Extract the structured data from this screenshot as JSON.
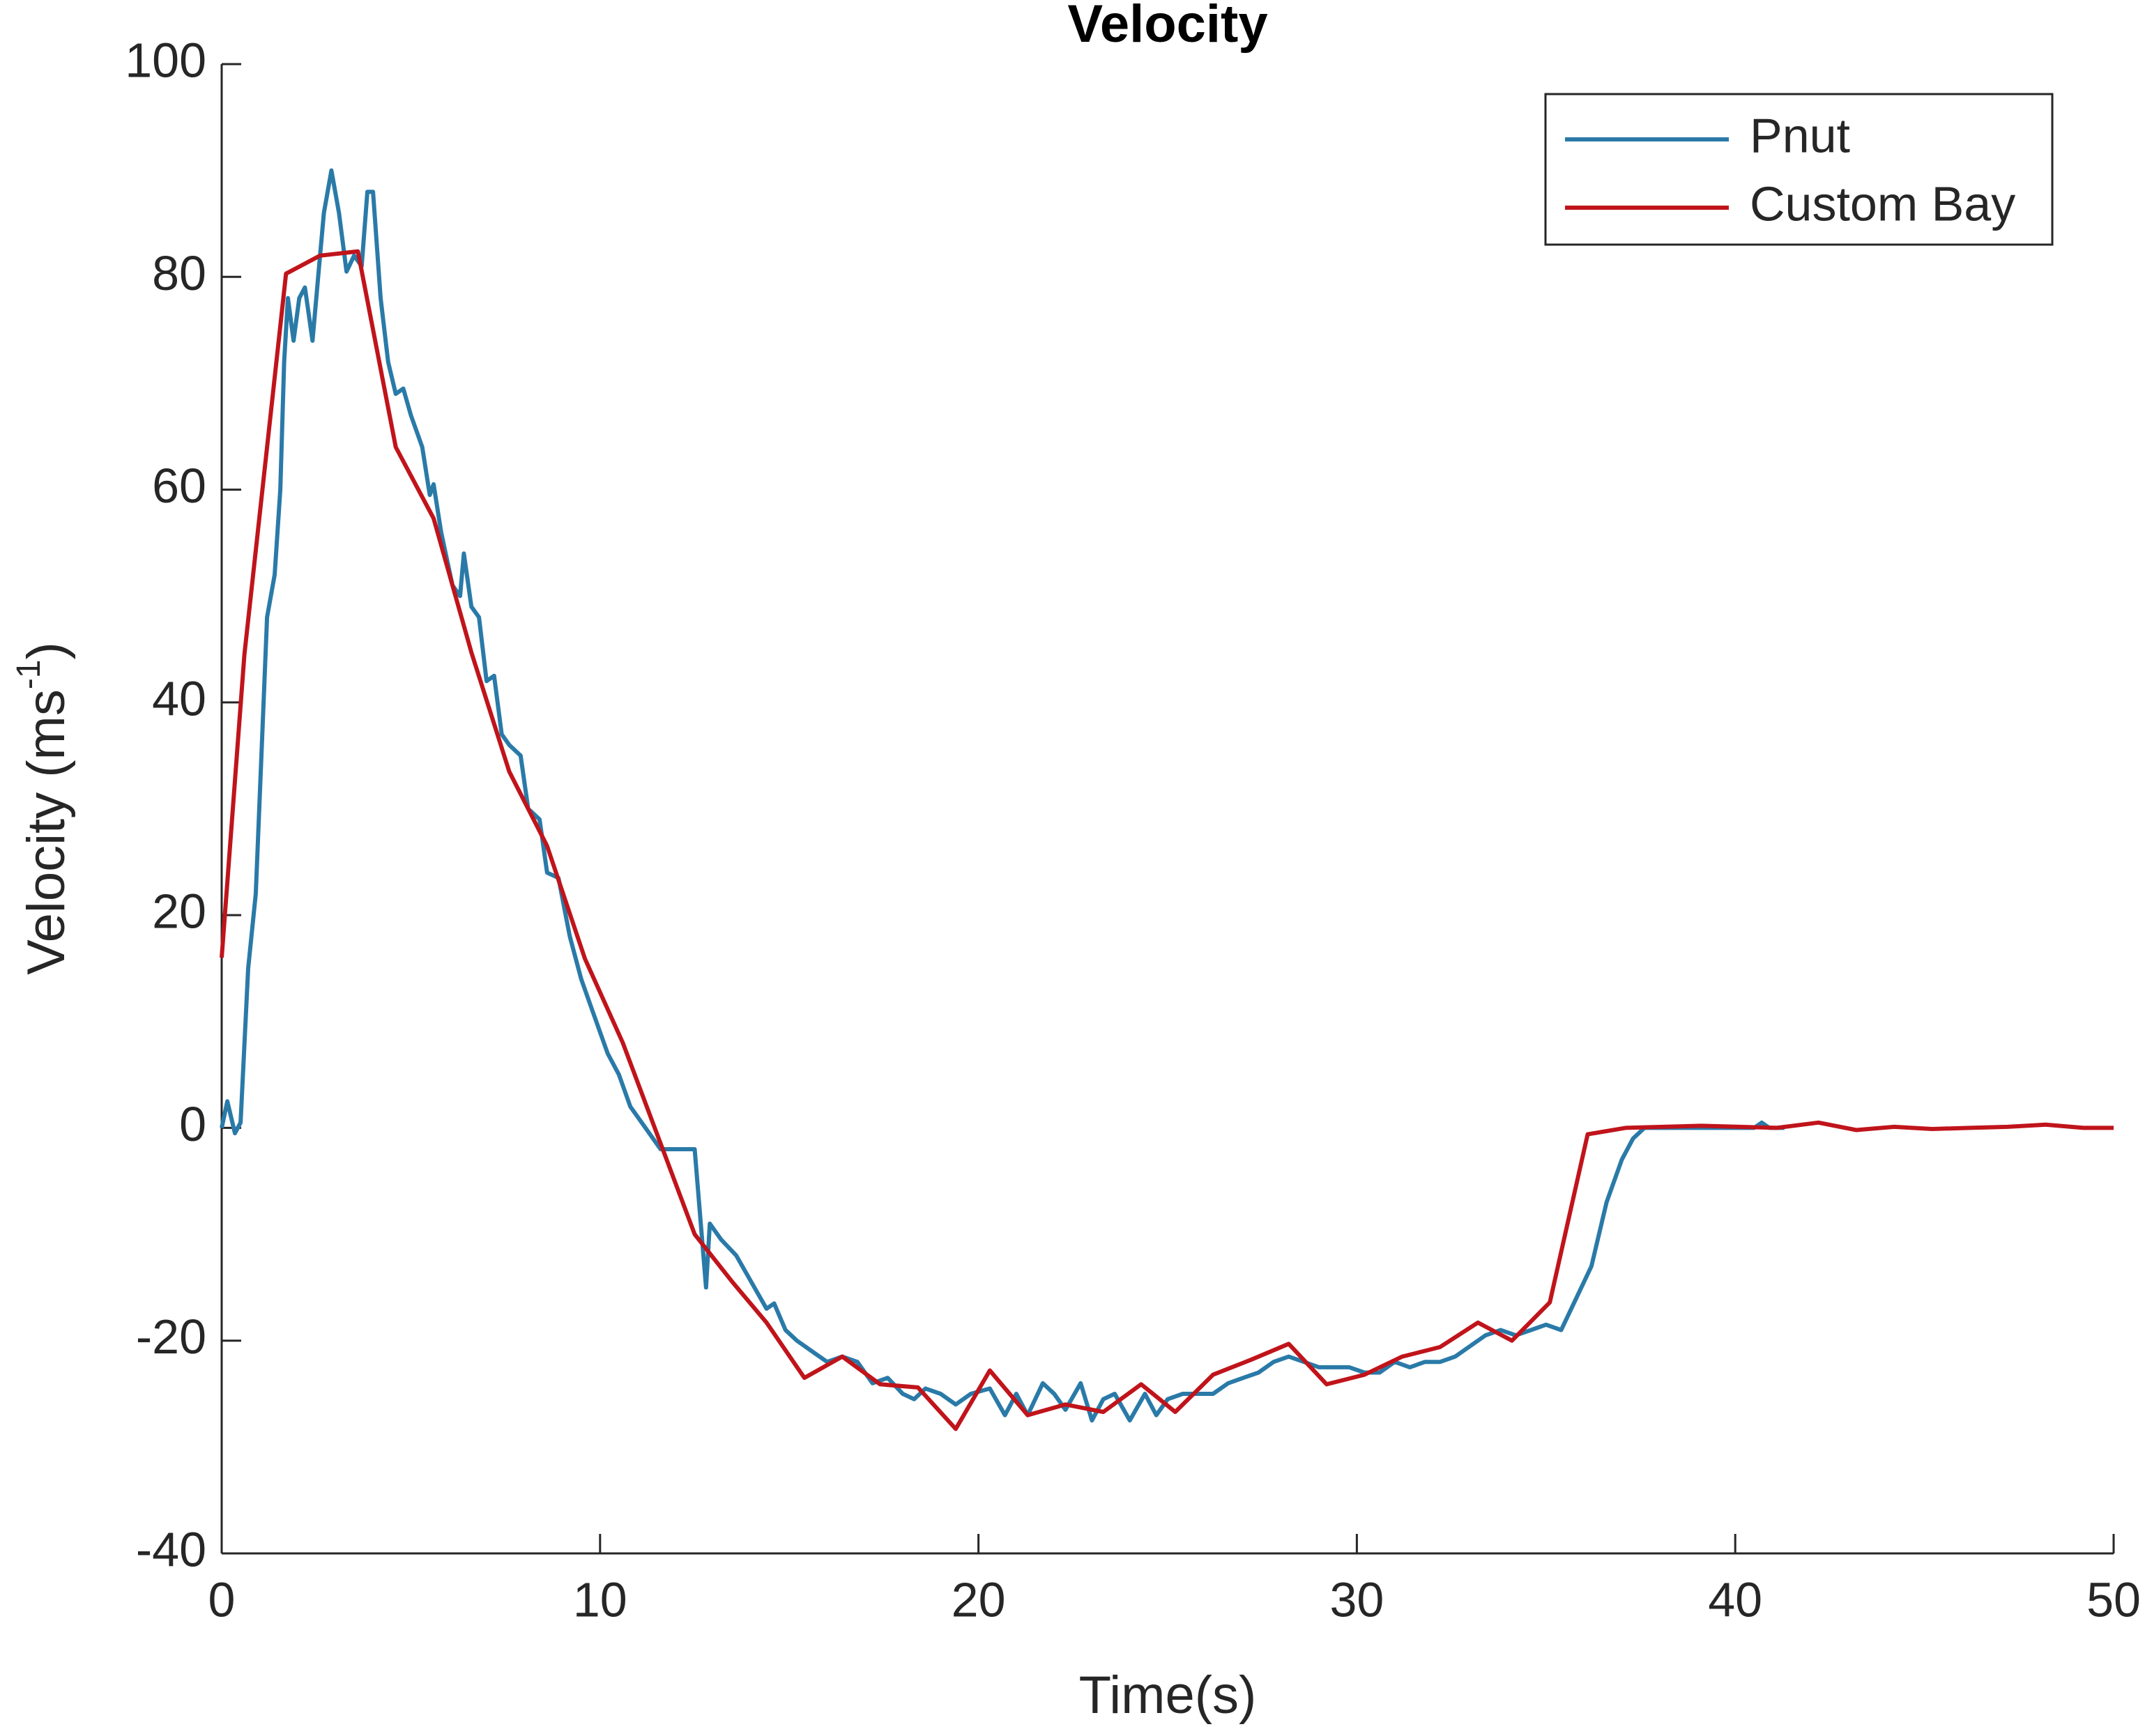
{
  "chart_data": {
    "type": "line",
    "title": "Velocity",
    "xlabel": "Time(s)",
    "ylabel": "Velocity (ms",
    "ylabel_sup": "-1",
    "ylabel_end": ")",
    "xlim": [
      0,
      50
    ],
    "xticks": [
      0,
      10,
      20,
      30,
      40,
      50
    ],
    "ylim": [
      -40,
      100
    ],
    "yticks": [
      -40,
      -20,
      0,
      20,
      40,
      60,
      80,
      100
    ],
    "legend": "northeast",
    "series": [
      {
        "name": "Pnut",
        "color": "#2a7aa8",
        "x": [
          0,
          0.15,
          0.35,
          0.5,
          0.7,
          0.9,
          1.05,
          1.2,
          1.4,
          1.55,
          1.65,
          1.75,
          1.9,
          2.05,
          2.2,
          2.4,
          2.55,
          2.7,
          2.9,
          3.1,
          3.3,
          3.5,
          3.7,
          3.85,
          4.0,
          4.2,
          4.4,
          4.6,
          4.8,
          5.0,
          5.3,
          5.5,
          5.6,
          5.8,
          6.1,
          6.3,
          6.4,
          6.6,
          6.8,
          7.0,
          7.2,
          7.4,
          7.6,
          7.9,
          8.1,
          8.4,
          8.6,
          8.9,
          9.2,
          9.5,
          9.8,
          10.2,
          10.5,
          10.8,
          11.1,
          11.4,
          11.6,
          12.0,
          12.5,
          12.8,
          12.9,
          13.2,
          13.6,
          14.0,
          14.4,
          14.6,
          14.9,
          15.2,
          15.6,
          16.0,
          16.4,
          16.8,
          17.2,
          17.6,
          18.0,
          18.3,
          18.6,
          19.0,
          19.4,
          19.8,
          20.3,
          20.7,
          21.0,
          21.3,
          21.7,
          22.0,
          22.3,
          22.7,
          23.0,
          23.3,
          23.6,
          24.0,
          24.4,
          24.7,
          25.0,
          25.4,
          25.8,
          26.2,
          26.6,
          27.0,
          27.4,
          27.8,
          28.2,
          28.6,
          29.0,
          29.4,
          29.8,
          30.2,
          30.6,
          31.0,
          31.4,
          31.8,
          32.2,
          32.6,
          33.0,
          33.4,
          33.8,
          34.2,
          34.6,
          35.0,
          35.4,
          35.8,
          36.2,
          36.6,
          37.0,
          37.3,
          37.6,
          38,
          39,
          40,
          40.5,
          40.7,
          40.9,
          41.3
        ],
        "values": [
          0,
          2.5,
          -0.5,
          0.5,
          15,
          22,
          35,
          48,
          52,
          60,
          72,
          78,
          74,
          78,
          79,
          74,
          80,
          86,
          90,
          86,
          80.5,
          82,
          81,
          88,
          88,
          78,
          72,
          69,
          69.5,
          67,
          64,
          59.5,
          60.5,
          56,
          51,
          50,
          54,
          49,
          48,
          42,
          42.5,
          37,
          36,
          35,
          30,
          29,
          24,
          23.5,
          18,
          14,
          11,
          7,
          5,
          2,
          0.5,
          -1,
          -2,
          -2,
          -2,
          -15,
          -9,
          -10.5,
          -12,
          -14.5,
          -17,
          -16.5,
          -19,
          -20,
          -21,
          -22,
          -21.5,
          -22,
          -24,
          -23.5,
          -25,
          -25.5,
          -24.5,
          -25,
          -26,
          -25,
          -24.5,
          -27,
          -25,
          -27,
          -24,
          -25,
          -26.5,
          -24,
          -27.5,
          -25.5,
          -25,
          -27.5,
          -25,
          -27,
          -25.5,
          -25,
          -25,
          -25,
          -24,
          -23.5,
          -23,
          -22,
          -21.5,
          -22,
          -22.5,
          -22.5,
          -22.5,
          -23,
          -23,
          -22,
          -22.5,
          -22,
          -22,
          -21.5,
          -20.5,
          -19.5,
          -19,
          -19.5,
          -19,
          -18.5,
          -19,
          -16,
          -13,
          -7,
          -3,
          -1,
          0,
          0,
          0,
          0,
          0,
          0.5,
          0,
          0
        ]
      },
      {
        "name": "Custom Bay",
        "color": "#c0141b",
        "x": [
          0,
          0.6,
          1.7,
          2.6,
          3.6,
          4.6,
          5.6,
          6.6,
          7.6,
          8.6,
          9.6,
          10.6,
          12.5,
          13.5,
          14.4,
          15.4,
          16.4,
          17.4,
          18.4,
          19.4,
          20.3,
          21.3,
          22.3,
          23.3,
          24.3,
          25.2,
          26.2,
          27.2,
          28.2,
          29.2,
          30.2,
          31.2,
          32.2,
          33.2,
          34.1,
          35.1,
          36.1,
          37.1,
          38.1,
          39.1,
          40.1,
          41.1,
          42.2,
          43.2,
          44.2,
          45.2,
          46.2,
          47.2,
          48.2,
          49.2,
          50
        ],
        "values": [
          16,
          44.5,
          80.3,
          82,
          82.4,
          64,
          57.3,
          44.7,
          33.5,
          26.5,
          15.9,
          8,
          -10,
          -14.5,
          -18.3,
          -23.5,
          -21.5,
          -24.1,
          -24.4,
          -28.3,
          -22.8,
          -27,
          -26,
          -26.7,
          -24.1,
          -26.7,
          -23.2,
          -21.8,
          -20.3,
          -24.1,
          -23.2,
          -21.5,
          -20.6,
          -18.3,
          -20,
          -16.4,
          -0.6,
          0,
          0.1,
          0.2,
          0.1,
          0,
          0.5,
          -0.2,
          0.1,
          -0.1,
          0,
          0.1,
          0.3,
          0,
          0
        ]
      }
    ]
  }
}
